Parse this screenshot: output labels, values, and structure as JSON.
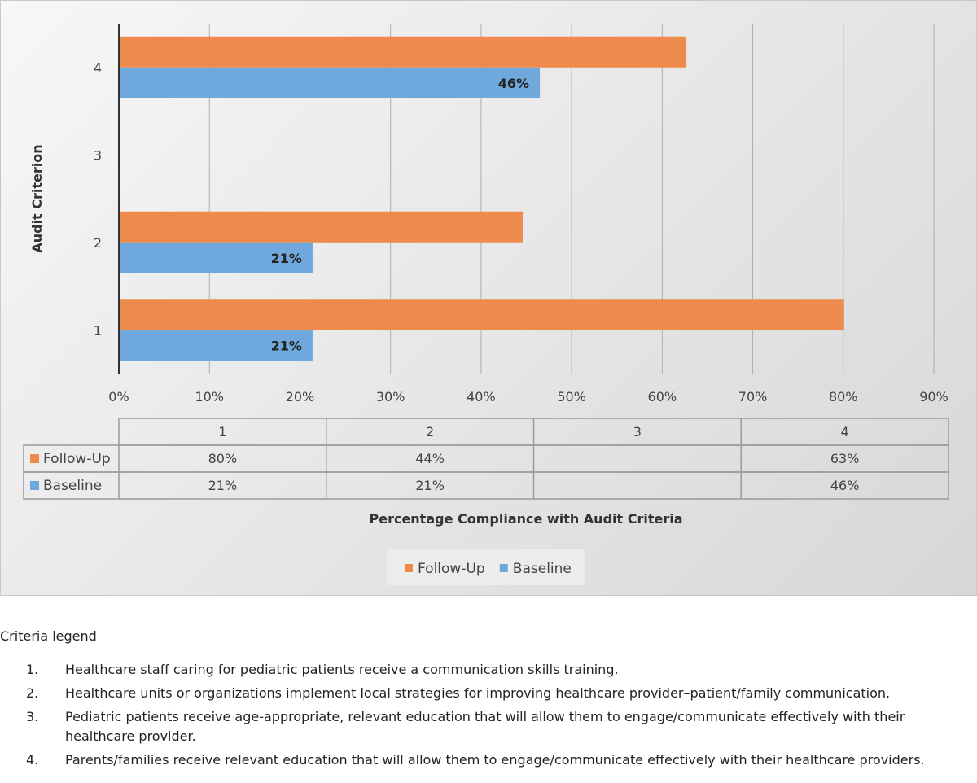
{
  "chart_data": {
    "type": "bar",
    "orientation": "horizontal",
    "categories": [
      "1",
      "2",
      "3",
      "4"
    ],
    "series": [
      {
        "name": "Follow-Up",
        "color": "#ed8a4c",
        "values": [
          80,
          44.5,
          null,
          62.5
        ],
        "table_labels": [
          "80%",
          "44%",
          "",
          "63%"
        ],
        "data_labels": [
          "",
          "",
          "",
          ""
        ]
      },
      {
        "name": "Baseline",
        "color": "#6fa8dc",
        "values": [
          21.3,
          21.3,
          null,
          46.4
        ],
        "table_labels": [
          "21%",
          "21%",
          "",
          "46%"
        ],
        "data_labels": [
          "21%",
          "21%",
          "",
          "46%"
        ]
      }
    ],
    "xlim": [
      0,
      90
    ],
    "x_ticks": [
      "0%",
      "10%",
      "20%",
      "30%",
      "40%",
      "50%",
      "60%",
      "70%",
      "80%",
      "90%"
    ],
    "xlabel": "Percentage Compliance with Audit Criteria",
    "ylabel": "Audit Criterion",
    "grid": true,
    "legend": "bottom",
    "data_table": true
  },
  "criteria": {
    "title": "Criteria legend",
    "items": [
      {
        "num": "1.",
        "text": "Healthcare staff caring for pediatric patients receive a communication skills training."
      },
      {
        "num": "2.",
        "text": "Healthcare units or organizations implement local strategies for improving healthcare provider–patient/family communication."
      },
      {
        "num": "3.",
        "text": "Pediatric patients receive age-appropriate, relevant education that will allow them to engage/communicate effectively with their healthcare provider."
      },
      {
        "num": "4.",
        "text": "Parents/families receive relevant education that will allow them to engage/communicate effectively with their healthcare providers."
      }
    ]
  }
}
